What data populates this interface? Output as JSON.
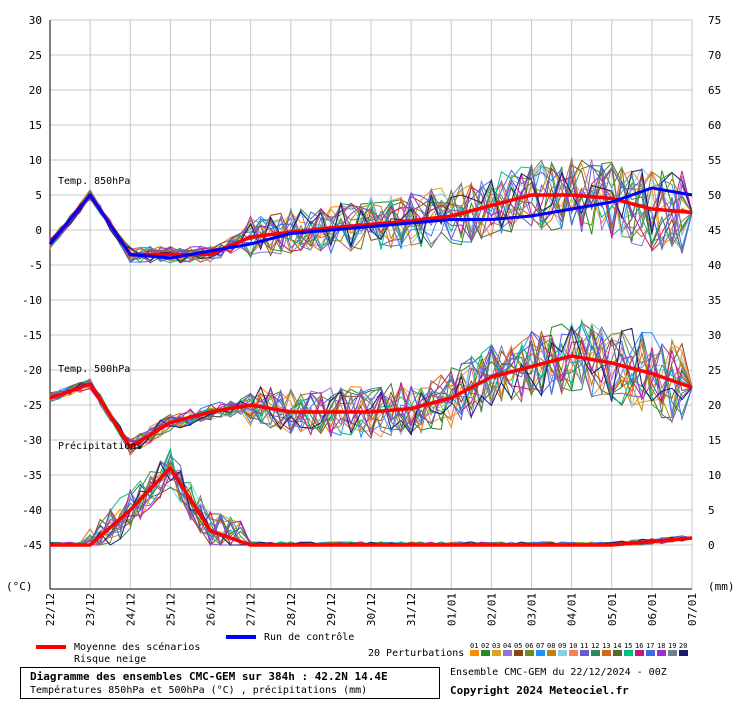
{
  "chart_data": {
    "type": "line",
    "x": [
      "22/12",
      "23/12",
      "24/12",
      "25/12",
      "26/12",
      "27/12",
      "28/12",
      "29/12",
      "30/12",
      "31/12",
      "01/01",
      "02/01",
      "03/01",
      "04/01",
      "05/01",
      "06/01",
      "07/01"
    ],
    "left_axis": {
      "unit": "(°C)",
      "ticks": [
        30,
        25,
        20,
        15,
        10,
        5,
        0,
        -5,
        -10,
        -15,
        -20,
        -25,
        -30,
        -35,
        -40,
        -45
      ],
      "ylim": [
        -45,
        30
      ]
    },
    "right_axis": {
      "unit": "(mm)",
      "ticks": [
        75,
        70,
        65,
        60,
        55,
        50,
        45,
        40,
        35,
        30,
        25,
        20,
        15,
        10,
        5,
        0
      ],
      "ylim": [
        0,
        75
      ]
    },
    "panel_labels": {
      "t850": "Temp. 850hPa",
      "t500": "Temp. 500hPa",
      "precip": "Précipitations"
    },
    "grid": true,
    "series": [
      {
        "name": "Moyenne des scénarios",
        "panel": "t850",
        "color": "#ff0000",
        "values": [
          -2,
          5,
          -3.5,
          -3.5,
          -3.5,
          -1,
          -0.3,
          0.3,
          0.8,
          1.3,
          2,
          3.5,
          5,
          5,
          4.5,
          3,
          2.5
        ]
      },
      {
        "name": "Run de contrôle",
        "panel": "t850",
        "color": "#0000ff",
        "values": [
          -2,
          5,
          -3.5,
          -4,
          -3,
          -2,
          -0.5,
          0,
          0.5,
          1,
          1.5,
          1.5,
          2,
          3,
          4,
          6,
          5
        ]
      },
      {
        "name": "Moyenne des scénarios",
        "panel": "t500",
        "color": "#ff0000",
        "values": [
          -24,
          -22,
          -31,
          -27.5,
          -26,
          -25,
          -26,
          -26,
          -26,
          -25.5,
          -24,
          -21,
          -19.5,
          -18,
          -19,
          -20.5,
          -22.5
        ]
      },
      {
        "name": "Moyenne des scénarios",
        "panel": "precip",
        "color": "#ff0000",
        "values": [
          -45,
          -45,
          -40,
          -34,
          -43,
          -45,
          -45,
          -45,
          -45,
          -45,
          -45,
          -45,
          -45,
          -45,
          -45,
          -44.5,
          -44
        ]
      }
    ],
    "legend": {
      "mean": "Moyenne des scénarios",
      "snow": "Risque neige",
      "control": "Run de contrôle",
      "perturbations": "20 Perturbations",
      "perturbation_ids": [
        "01",
        "02",
        "03",
        "04",
        "05",
        "06",
        "07",
        "08",
        "09",
        "10",
        "11",
        "12",
        "13",
        "14",
        "15",
        "16",
        "17",
        "18",
        "19",
        "20"
      ],
      "perturbation_colors": [
        "#ff8c00",
        "#228b22",
        "#daa520",
        "#9370db",
        "#8b4513",
        "#6b8e23",
        "#1e90ff",
        "#b8860b",
        "#87ceeb",
        "#ff7f50",
        "#6a5acd",
        "#2e8b57",
        "#d2691e",
        "#556b2f",
        "#00c080",
        "#c71585",
        "#4169e1",
        "#9932cc",
        "#708090",
        "#191970"
      ]
    }
  },
  "footer": {
    "title": "Diagramme des ensembles CMC-GEM sur 384h : 42.2N 14.4E",
    "subtitle": "Températures 850hPa et 500hPa (°C) , précipitations (mm)",
    "run": "Ensemble CMC-GEM du 22/12/2024 - 00Z",
    "copyright": "Copyright 2024 Meteociel.fr"
  }
}
